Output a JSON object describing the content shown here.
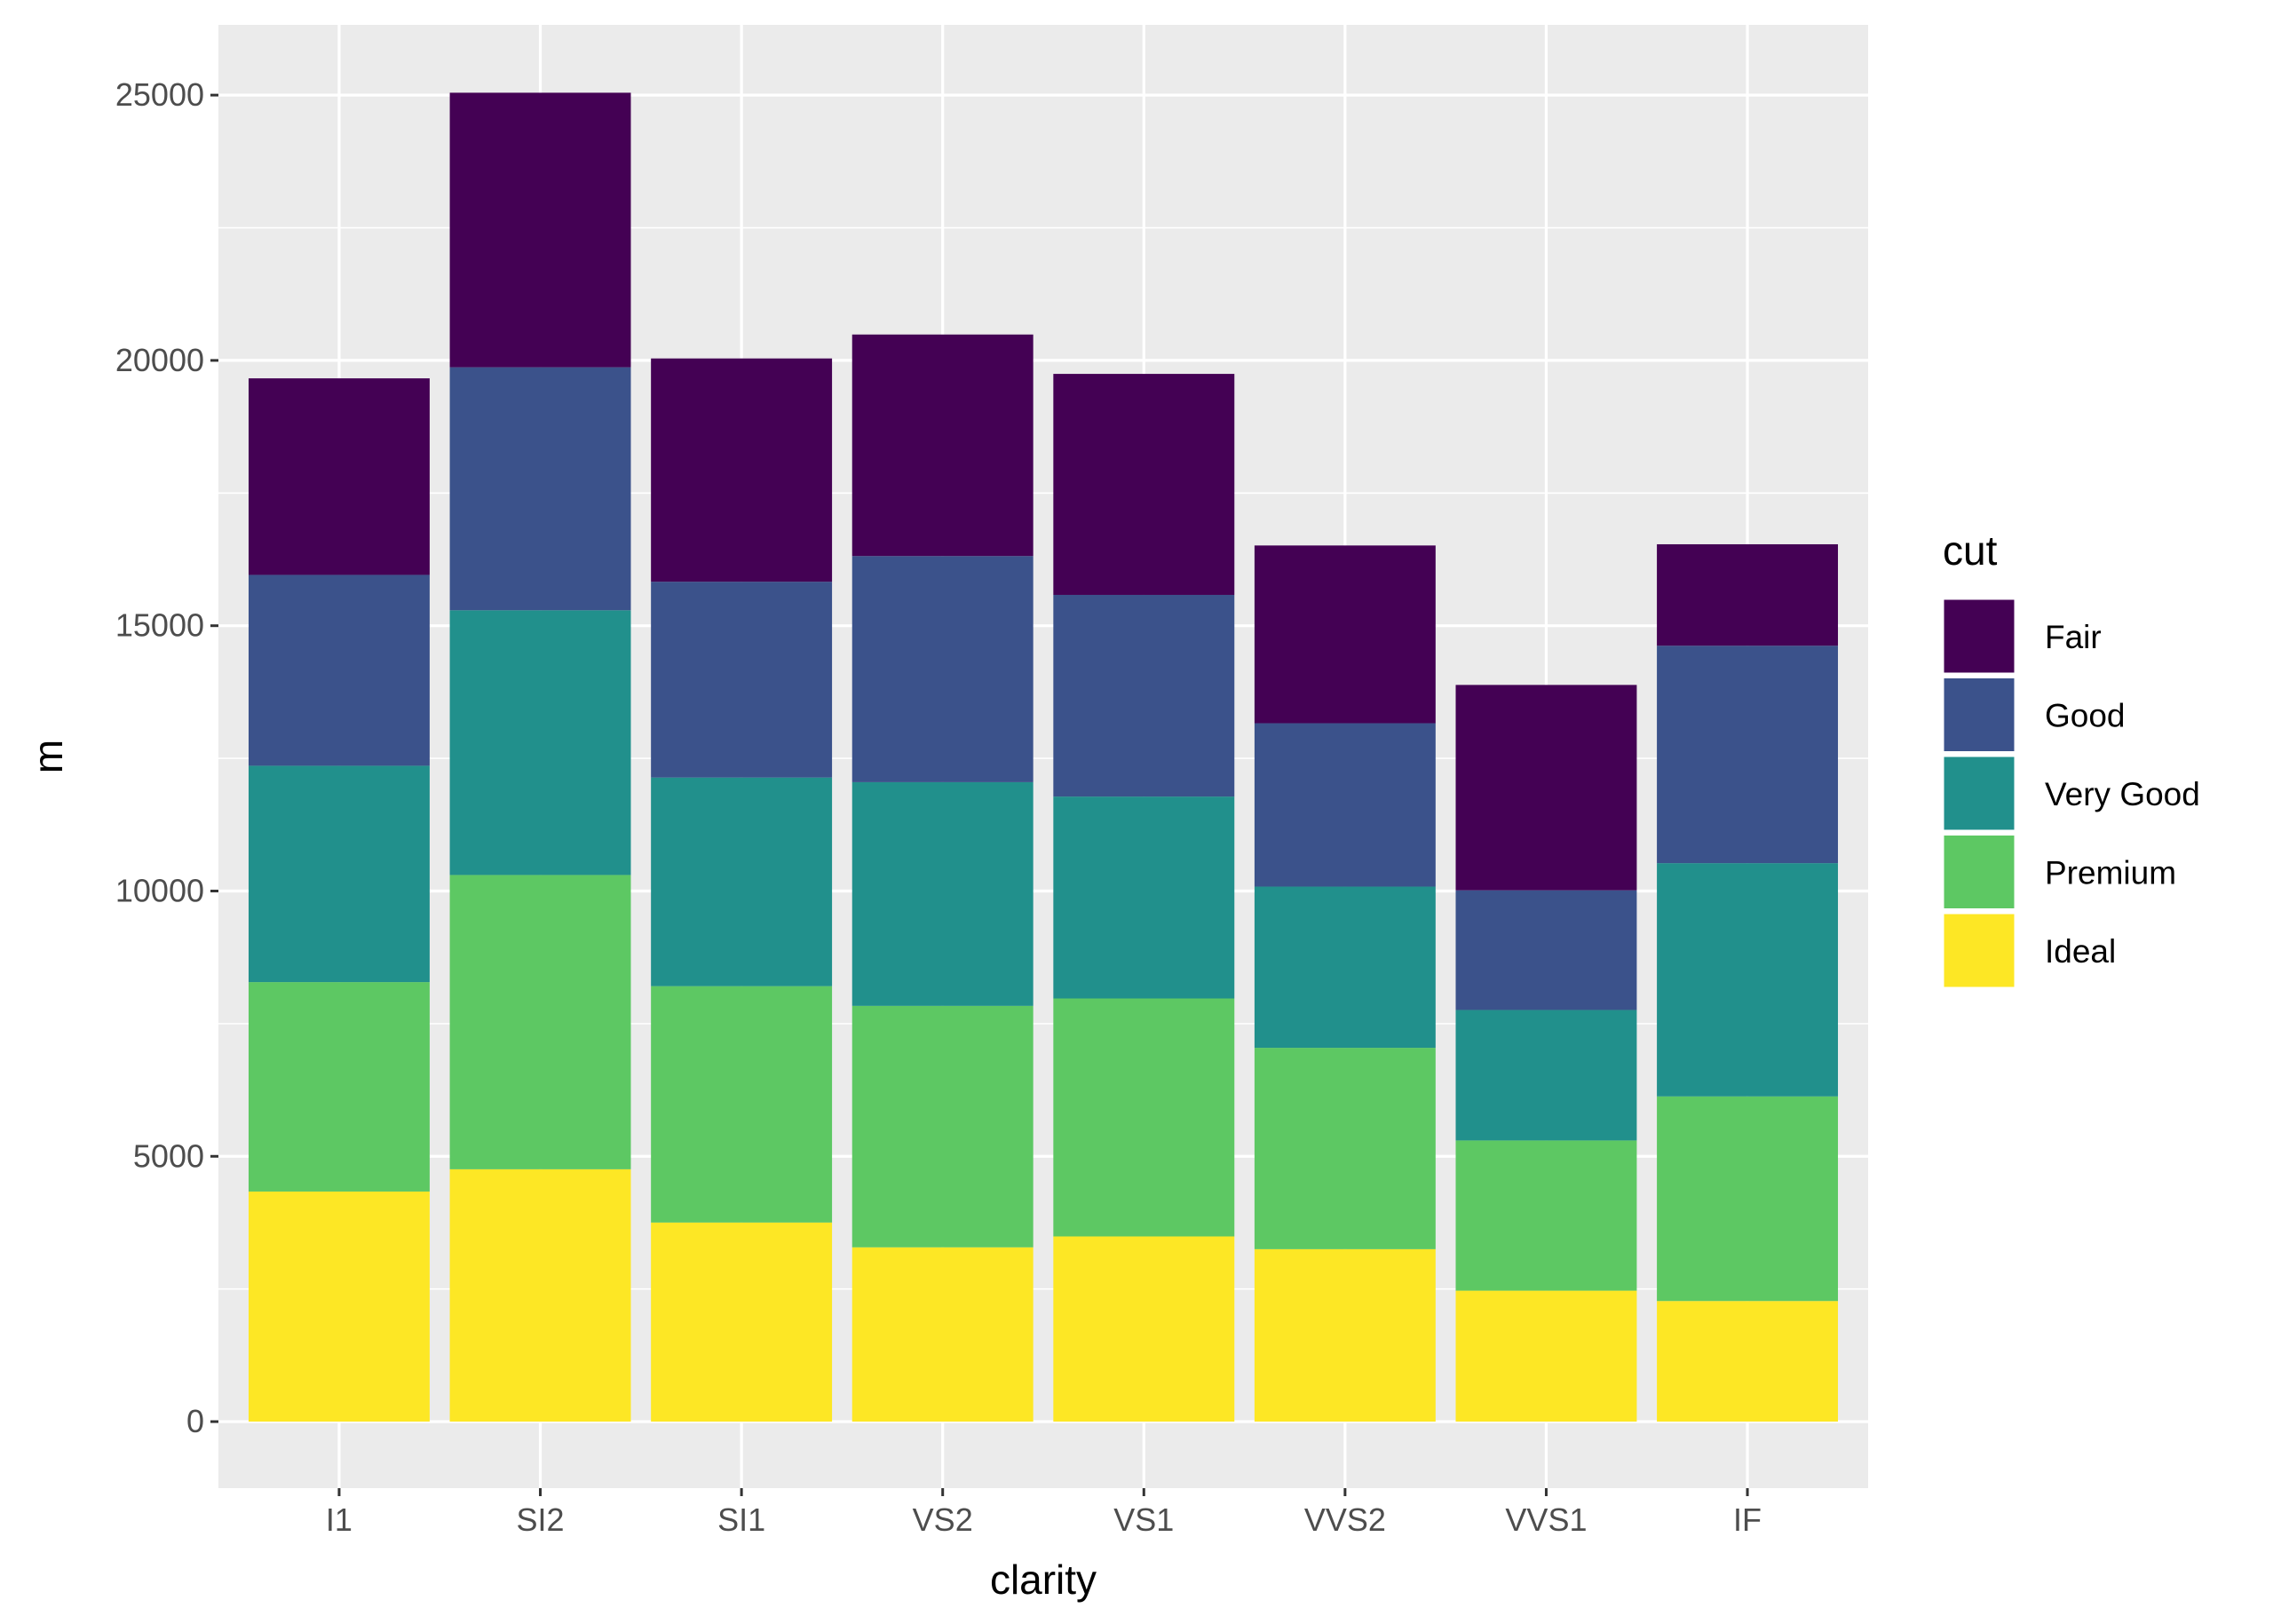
{
  "chart_data": {
    "type": "bar",
    "stacked": true,
    "xlabel": "clarity",
    "ylabel": "m",
    "categories": [
      "I1",
      "SI2",
      "SI1",
      "VS2",
      "VS1",
      "VVS2",
      "VVS1",
      "IF"
    ],
    "ylim": [
      -1254,
      26324
    ],
    "yticks": [
      0,
      5000,
      10000,
      15000,
      20000,
      25000
    ],
    "grid": true,
    "legend": {
      "title": "cut",
      "position": "right"
    },
    "series": [
      {
        "name": "Fair",
        "color": "#440154",
        "values": [
          3704,
          5174,
          4208,
          4175,
          4165,
          3350,
          3871,
          1912
        ]
      },
      {
        "name": "Good",
        "color": "#3B528B",
        "values": [
          3597,
          4580,
          3690,
          4262,
          3801,
          3079,
          2255,
          4098
        ]
      },
      {
        "name": "Very Good",
        "color": "#21908C",
        "values": [
          4078,
          4989,
          3932,
          4216,
          3805,
          3038,
          2459,
          4396
        ]
      },
      {
        "name": "Premium",
        "color": "#5DC863",
        "values": [
          3947,
          5546,
          4455,
          4550,
          4485,
          3795,
          2831,
          3856
        ]
      },
      {
        "name": "Ideal",
        "color": "#FDE725",
        "values": [
          4336,
          4756,
          3752,
          3285,
          3490,
          3250,
          2468,
          2273
        ]
      }
    ]
  }
}
